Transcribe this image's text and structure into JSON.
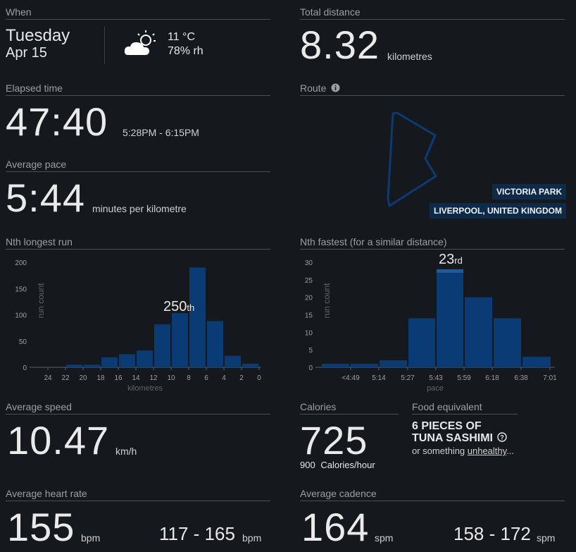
{
  "when": {
    "heading": "When",
    "day": "Tuesday",
    "date": "Apr 15",
    "weather_icon": "partly-cloudy-icon",
    "temperature": "11 °C",
    "humidity": "78% rh"
  },
  "total_distance": {
    "heading": "Total distance",
    "value": "8.32",
    "unit": "kilometres"
  },
  "elapsed_time": {
    "heading": "Elapsed time",
    "value": "47:40",
    "range": "5:28PM - 6:15PM"
  },
  "route": {
    "heading": "Route",
    "info_icon": "info-icon",
    "place": "VICTORIA PARK",
    "region": "LIVERPOOL, UNITED KINGDOM"
  },
  "average_pace": {
    "heading": "Average pace",
    "value": "5:44",
    "unit": "minutes per kilometre"
  },
  "nth_longest": {
    "heading": "Nth longest run",
    "rank": "250",
    "rank_suffix": "th",
    "chart_data": {
      "type": "bar",
      "title": "Nth longest run",
      "xlabel": "kilometres",
      "ylabel": "run count",
      "x_ticks": [
        "24",
        "22",
        "20",
        "18",
        "16",
        "14",
        "12",
        "10",
        "8",
        "6",
        "4",
        "2",
        "0"
      ],
      "bins_km": [
        [
          24,
          22
        ],
        [
          22,
          20
        ],
        [
          20,
          18
        ],
        [
          18,
          16
        ],
        [
          16,
          14
        ],
        [
          14,
          12
        ],
        [
          12,
          10
        ],
        [
          10,
          8
        ],
        [
          8,
          6
        ],
        [
          6,
          4
        ],
        [
          4,
          2
        ],
        [
          2,
          0
        ]
      ],
      "values": [
        0,
        5,
        5,
        19,
        25,
        32,
        82,
        103,
        190,
        88,
        22,
        7
      ],
      "highlight_bin_index": 7,
      "y_ticks": [
        "200",
        "150",
        "100",
        "50",
        "0"
      ],
      "ylim": [
        0,
        200
      ]
    }
  },
  "nth_fastest": {
    "heading": "Nth fastest (for a similar distance)",
    "rank": "23",
    "rank_suffix": "rd",
    "chart_data": {
      "type": "bar",
      "title": "Nth fastest (for a similar distance)",
      "xlabel": "pace",
      "ylabel": "run count",
      "x_ticks": [
        "<4:49",
        "5:14",
        "5:27",
        "5:43",
        "5:59",
        "6:18",
        "6:38",
        "7:01"
      ],
      "values": [
        1,
        1,
        2,
        14,
        28,
        20,
        14,
        3
      ],
      "highlight_bin_index": 4,
      "y_ticks": [
        "30",
        "25",
        "20",
        "15",
        "10",
        "5",
        "0"
      ],
      "ylim": [
        0,
        30
      ]
    }
  },
  "average_speed": {
    "heading": "Average speed",
    "value": "10.47",
    "unit": "km/h"
  },
  "calories": {
    "heading": "Calories",
    "value": "725",
    "rate_value": "900",
    "rate_unit": "Calories/hour"
  },
  "food": {
    "heading": "Food equivalent",
    "line1": "6 PIECES OF",
    "line2": "TUNA SASHIMI",
    "help_icon": "help-circle-icon",
    "prefix": "or something ",
    "link": "unhealthy",
    "suffix": "..."
  },
  "heart_rate": {
    "heading": "Average heart rate",
    "value": "155",
    "unit": "bpm",
    "range": "117 - 165",
    "range_unit": "bpm"
  },
  "cadence": {
    "heading": "Average cadence",
    "value": "164",
    "unit": "spm",
    "range": "158 - 172",
    "range_unit": "spm"
  },
  "colors": {
    "bar": "#0b3b74",
    "bar_highlight": "#245a98",
    "background": "#15181c",
    "route": "#0d3a73"
  }
}
